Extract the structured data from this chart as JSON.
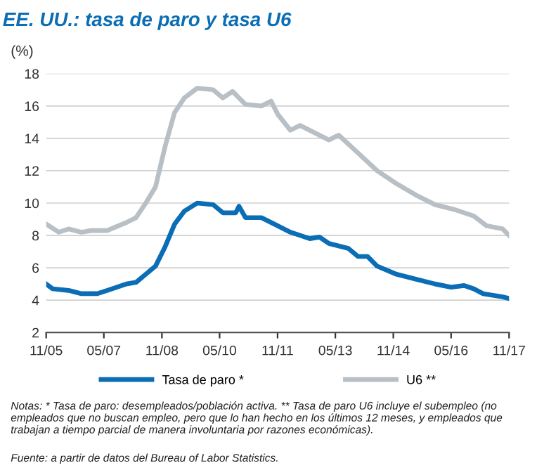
{
  "chart_data": {
    "type": "line",
    "title": "EE. UU.: tasa de paro y tasa U6",
    "ylabel": "(%)",
    "x": [
      "2005-11",
      "2006-01",
      "2006-06",
      "2006-10",
      "2007-03",
      "2007-06",
      "2007-12",
      "2008-03",
      "2008-06",
      "2008-09",
      "2008-12",
      "2009-03",
      "2009-06",
      "2009-10",
      "2010-03",
      "2010-06",
      "2010-10",
      "2010-11",
      "2011-01",
      "2011-06",
      "2011-11",
      "2012-03",
      "2012-09",
      "2012-12",
      "2013-03",
      "2013-09",
      "2013-12",
      "2014-03",
      "2014-06",
      "2014-12",
      "2015-06",
      "2015-12",
      "2016-05",
      "2016-09",
      "2016-12",
      "2017-03",
      "2017-06",
      "2017-09",
      "2017-11"
    ],
    "series": [
      {
        "name": "Tasa de paro *",
        "color": "#0a6db5",
        "values": [
          5.0,
          4.7,
          4.6,
          4.4,
          4.4,
          4.6,
          5.0,
          5.1,
          5.6,
          6.1,
          7.3,
          8.7,
          9.5,
          10.0,
          9.9,
          9.4,
          9.4,
          9.8,
          9.1,
          9.1,
          8.6,
          8.2,
          7.8,
          7.9,
          7.5,
          7.2,
          6.7,
          6.7,
          6.1,
          5.6,
          5.3,
          5.0,
          4.8,
          4.9,
          4.7,
          4.4,
          4.3,
          4.2,
          4.1
        ]
      },
      {
        "name": "U6 **",
        "color": "#b8c0c6",
        "x": [
          "2005-11",
          "2006-03",
          "2006-06",
          "2006-10",
          "2007-01",
          "2007-06",
          "2007-12",
          "2008-03",
          "2008-06",
          "2008-09",
          "2008-12",
          "2009-03",
          "2009-06",
          "2009-10",
          "2010-03",
          "2010-06",
          "2010-09",
          "2011-01",
          "2011-06",
          "2011-09",
          "2011-11",
          "2012-03",
          "2012-06",
          "2012-10",
          "2013-03",
          "2013-06",
          "2013-12",
          "2014-06",
          "2014-12",
          "2015-06",
          "2015-12",
          "2016-06",
          "2016-12",
          "2017-04",
          "2017-09",
          "2017-11"
        ],
        "values": [
          8.7,
          8.2,
          8.4,
          8.2,
          8.3,
          8.3,
          8.8,
          9.1,
          10.0,
          11.0,
          13.5,
          15.6,
          16.5,
          17.1,
          17.0,
          16.5,
          16.9,
          16.1,
          16.0,
          16.3,
          15.5,
          14.5,
          14.8,
          14.4,
          13.9,
          14.2,
          13.1,
          12.0,
          11.2,
          10.5,
          9.9,
          9.6,
          9.2,
          8.6,
          8.4,
          8.0
        ]
      }
    ],
    "xlim": [
      "2005-11",
      "2017-11"
    ],
    "xticks": [
      {
        "value": "2005-11",
        "label": "11/05"
      },
      {
        "value": "2007-05",
        "label": "05/07"
      },
      {
        "value": "2008-11",
        "label": "11/08"
      },
      {
        "value": "2010-05",
        "label": "05/10"
      },
      {
        "value": "2011-11",
        "label": "11/11"
      },
      {
        "value": "2013-05",
        "label": "05/13"
      },
      {
        "value": "2014-11",
        "label": "11/14"
      },
      {
        "value": "2016-05",
        "label": "05/16"
      },
      {
        "value": "2017-11",
        "label": "11/17"
      }
    ],
    "ylim": [
      2,
      18
    ],
    "yticks": [
      2,
      4,
      6,
      8,
      10,
      12,
      14,
      16,
      18
    ],
    "grid": "y",
    "legend": "bottom",
    "line_style": "solid",
    "marker": "none",
    "annotations": [
      "Notas: * Tasa de paro: desempleados/población activa. ** Tasa de paro U6 incluye el subempleo (no empleados que no buscan empleo, pero que lo han hecho en los últimos 12 meses, y empleados que trabajan a tiempo parcial de manera involuntaria por razones económicas).",
      "Fuente: a partir de datos del Bureau of Labor Statistics."
    ]
  }
}
